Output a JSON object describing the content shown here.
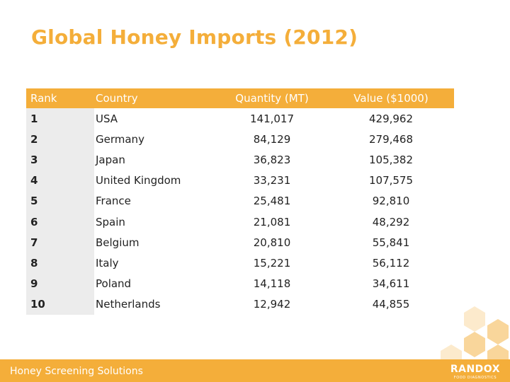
{
  "title": "Global Honey Imports (2012)",
  "table": {
    "headers": {
      "rank": "Rank",
      "country": "Country",
      "quantity": "Quantity (MT)",
      "value": "Value ($1000)"
    },
    "rows": [
      {
        "rank": "1",
        "country": "USA",
        "quantity": "141,017",
        "value": "429,962"
      },
      {
        "rank": "2",
        "country": "Germany",
        "quantity": "84,129",
        "value": "279,468"
      },
      {
        "rank": "3",
        "country": "Japan",
        "quantity": "36,823",
        "value": "105,382"
      },
      {
        "rank": "4",
        "country": "United Kingdom",
        "quantity": "33,231",
        "value": "107,575"
      },
      {
        "rank": "5",
        "country": "France",
        "quantity": "25,481",
        "value": "92,810"
      },
      {
        "rank": "6",
        "country": "Spain",
        "quantity": "21,081",
        "value": "48,292"
      },
      {
        "rank": "7",
        "country": "Belgium",
        "quantity": "20,810",
        "value": "55,841"
      },
      {
        "rank": "8",
        "country": "Italy",
        "quantity": "15,221",
        "value": "56,112"
      },
      {
        "rank": "9",
        "country": "Poland",
        "quantity": "14,118",
        "value": "34,611"
      },
      {
        "rank": "10",
        "country": "Netherlands",
        "quantity": "12,942",
        "value": "44,855"
      }
    ]
  },
  "footer": {
    "text": "Honey Screening Solutions",
    "logo": "RANDOX",
    "logo_sub": "FOOD DIAGNOSTICS"
  },
  "colors": {
    "accent": "#F4AE3A",
    "rank_cell": "#ECECEC"
  }
}
